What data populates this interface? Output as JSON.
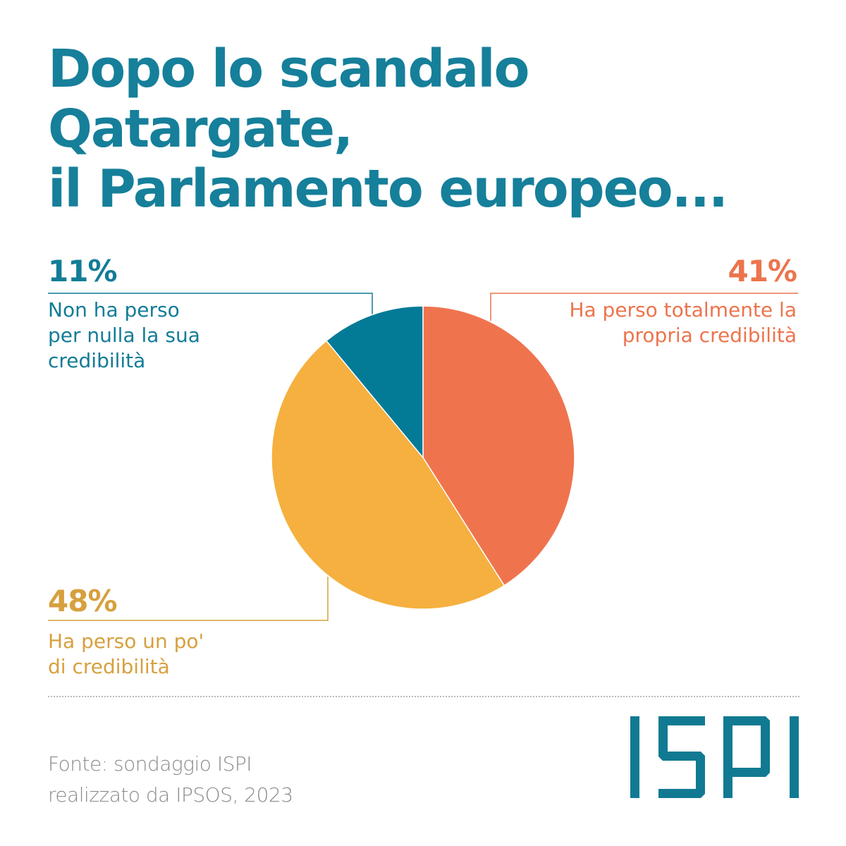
{
  "title_lines": [
    "Dopo lo scandalo",
    "Qatargate,",
    "il Parlamento europeo..."
  ],
  "chart_data": {
    "type": "pie",
    "title": "Dopo lo scandalo Qatargate, il Parlamento europeo...",
    "start": "top",
    "direction": "clockwise",
    "slices": [
      {
        "label": "Ha perso totalmente la propria credibilità",
        "value": 41,
        "display": "41%",
        "color": "#ef744e",
        "label_lines": [
          "Ha perso totalmente la",
          "propria credibilità"
        ],
        "text_color": "#ec744d"
      },
      {
        "label": "Ha perso un po' di credibilità",
        "value": 48,
        "display": "48%",
        "color": "#f5b03f",
        "label_lines": [
          "Ha perso un po'",
          "di credibilità"
        ],
        "text_color": "#d7a03e"
      },
      {
        "label": "Non ha perso per nulla la sua credibilità",
        "value": 11,
        "display": "11%",
        "color": "#037a96",
        "label_lines": [
          "Non ha perso",
          "per nulla la sua",
          "credibilità"
        ],
        "text_color": "#137c97"
      }
    ],
    "unit": "%"
  },
  "source_lines": [
    "Fonte: sondaggio ISPI",
    "realizzato da IPSOS, 2023"
  ],
  "logo": {
    "text": "ISPI",
    "color": "#117a92"
  }
}
